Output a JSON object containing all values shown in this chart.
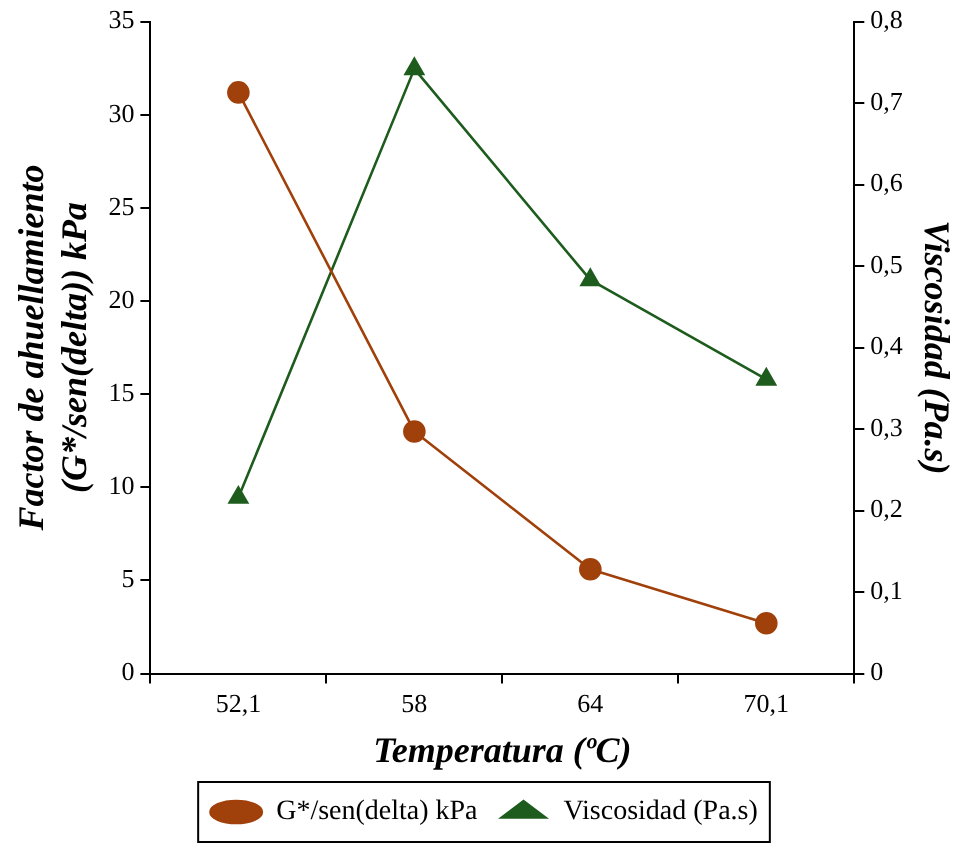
{
  "chart_data": {
    "type": "line",
    "xlabel": "Temperatura (ºC)",
    "ylabel": "Factor de ahuellamiento (G*/sen(delta)) kPa",
    "y2label": "Viscosidad (Pa.s)",
    "categories": [
      "52,1",
      "58",
      "64",
      "70,1"
    ],
    "series": [
      {
        "name": "G*/sen(delta) kPa",
        "color": "#a0400a",
        "marker": "circle",
        "values": [
          31.2,
          13.0,
          5.6,
          2.7
        ]
      },
      {
        "name": "Viscosidad (Pa.s)",
        "color": "#1e5c1e",
        "marker": "triangle",
        "axis": "y2",
        "values": [
          0.216,
          0.742,
          0.483,
          0.361
        ]
      }
    ],
    "ylim": [
      0,
      35
    ],
    "yticks": [
      0,
      5,
      10,
      15,
      20,
      25,
      30,
      35
    ],
    "y2lim": [
      0,
      0.8
    ],
    "y2ticks": [
      0,
      {
        "value": 0.1,
        "label": "0,1"
      },
      {
        "value": 0.2,
        "label": "0,2"
      },
      {
        "value": 0.3,
        "label": "0,3"
      },
      {
        "value": 0.4,
        "label": "0,4"
      },
      {
        "value": 0.5,
        "label": "0,5"
      },
      {
        "value": 0.6,
        "label": "0,6"
      },
      {
        "value": 0.7,
        "label": "0,7"
      },
      {
        "value": 0.8,
        "label": "0,8"
      }
    ],
    "grid": false,
    "legend": "bottom",
    "line_style": "solid"
  }
}
